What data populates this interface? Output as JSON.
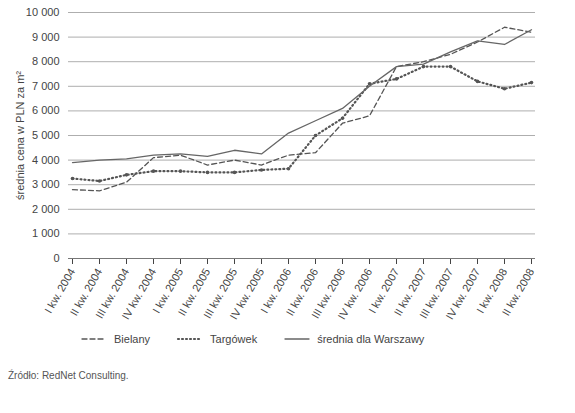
{
  "chart_data": {
    "type": "line",
    "y_label": "średnia cena w PLN za m²",
    "source": "Źródło: RedNet Consulting.",
    "categories": [
      "I kw. 2004",
      "II kw. 2004",
      "III kw. 2004",
      "IV kw. 2004",
      "I kw. 2005",
      "II kw. 2005",
      "III kw. 2005",
      "IV kw. 2005",
      "I kw. 2006",
      "II kw. 2006",
      "III kw. 2006",
      "IV kw. 2006",
      "I kw. 2007",
      "II kw. 2007",
      "III kw. 2007",
      "IV kw. 2007",
      "I kw. 2008",
      "II kw. 2008"
    ],
    "series": [
      {
        "name": "Bielany",
        "color": "#555555",
        "line_style": "dashed",
        "values": [
          2800,
          2750,
          3100,
          4100,
          4200,
          3800,
          4000,
          3800,
          4200,
          4300,
          5500,
          5800,
          7800,
          8000,
          8300,
          8800,
          9400,
          9200
        ]
      },
      {
        "name": "Targówek",
        "color": "#555555",
        "line_style": "dotted",
        "marker": "circle",
        "values": [
          3250,
          3150,
          3400,
          3550,
          3550,
          3500,
          3500,
          3600,
          3650,
          5000,
          5700,
          7100,
          7300,
          7800,
          7800,
          7200,
          6900,
          7150
        ]
      },
      {
        "name": "średnia dla Warszawy",
        "color": "#666666",
        "line_style": "solid",
        "values": [
          3900,
          4000,
          4050,
          4200,
          4250,
          4150,
          4400,
          4250,
          5100,
          5600,
          6100,
          7000,
          7800,
          7900,
          8400,
          8850,
          8700,
          9300
        ]
      }
    ],
    "ylim": [
      0,
      10000
    ],
    "yticks": [
      0,
      {
        "value": 1000,
        "label": "1 000"
      },
      {
        "value": 2000,
        "label": "2 000"
      },
      {
        "value": 3000,
        "label": "3 000"
      },
      {
        "value": 4000,
        "label": "4 000"
      },
      {
        "value": 5000,
        "label": "5 000"
      },
      {
        "value": 6000,
        "label": "6 000"
      },
      {
        "value": 7000,
        "label": "7 000"
      },
      {
        "value": 8000,
        "label": "8 000"
      },
      {
        "value": 9000,
        "label": "9 000"
      },
      {
        "value": 10000,
        "label": "10 000"
      }
    ],
    "grid": true
  }
}
